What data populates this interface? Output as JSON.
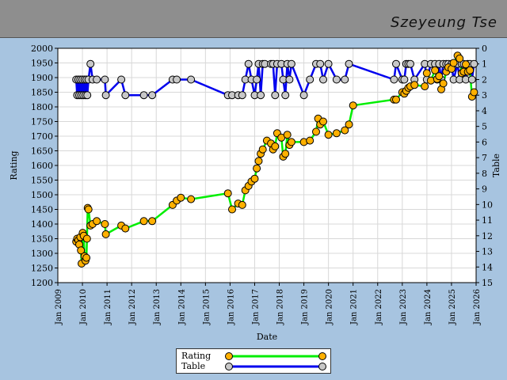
{
  "header": {
    "player_name": "Szeyeung Tse"
  },
  "chart_data": {
    "type": "line",
    "x_axis": {
      "label": "Date",
      "ticks": [
        "Jan 2009",
        "Jan 2010",
        "Jan 2011",
        "Jan 2012",
        "Jan 2013",
        "Jan 2014",
        "Jan 2015",
        "Jan 2016",
        "Jan 2017",
        "Jan 2018",
        "Jan 2019",
        "Jan 2020",
        "Jan 2021",
        "Jan 2022",
        "Jan 2023",
        "Jan 2024",
        "Jan 2025",
        "Jan 2026"
      ],
      "range": [
        "2009-01-01",
        "2026-01-01"
      ]
    },
    "y_left": {
      "label": "Rating",
      "range": [
        1200,
        2000
      ],
      "ticks": [
        "1200",
        "1250",
        "1300",
        "1350",
        "1400",
        "1450",
        "1500",
        "1550",
        "1600",
        "1650",
        "1700",
        "1750",
        "1800",
        "1850",
        "1900",
        "1950",
        "2000"
      ]
    },
    "y_right": {
      "label": "Table",
      "range": [
        0,
        15
      ],
      "inverted": true,
      "ticks": [
        "0",
        "1",
        "2",
        "3",
        "4",
        "5",
        "6",
        "7",
        "8",
        "9",
        "10",
        "11",
        "12",
        "13",
        "14",
        "15"
      ]
    },
    "grid": true,
    "legend_placement": "bottom-center",
    "series": [
      {
        "name": "Rating",
        "color": "#00ee00",
        "marker_color": "#ffb000",
        "axis": "left",
        "points": [
          [
            "2009-10-01",
            1340
          ],
          [
            "2009-10-15",
            1350
          ],
          [
            "2009-11-01",
            1345
          ],
          [
            "2009-11-15",
            1330
          ],
          [
            "2009-12-01",
            1355
          ],
          [
            "2009-12-10",
            1310
          ],
          [
            "2009-12-20",
            1265
          ],
          [
            "2010-01-05",
            1370
          ],
          [
            "2010-01-20",
            1360
          ],
          [
            "2010-02-01",
            1290
          ],
          [
            "2010-02-15",
            1275
          ],
          [
            "2010-03-01",
            1285
          ],
          [
            "2010-03-10",
            1350
          ],
          [
            "2010-03-20",
            1455
          ],
          [
            "2010-04-01",
            1450
          ],
          [
            "2010-05-01",
            1395
          ],
          [
            "2010-06-01",
            1400
          ],
          [
            "2010-08-01",
            1410
          ],
          [
            "2010-12-01",
            1400
          ],
          [
            "2010-12-15",
            1365
          ],
          [
            "2011-08-01",
            1395
          ],
          [
            "2011-10-01",
            1385
          ],
          [
            "2012-07-01",
            1410
          ],
          [
            "2012-11-01",
            1410
          ],
          [
            "2013-09-01",
            1465
          ],
          [
            "2013-11-01",
            1480
          ],
          [
            "2014-01-01",
            1490
          ],
          [
            "2014-06-01",
            1485
          ],
          [
            "2015-12-01",
            1505
          ],
          [
            "2016-02-01",
            1450
          ],
          [
            "2016-05-01",
            1470
          ],
          [
            "2016-07-01",
            1465
          ],
          [
            "2016-08-15",
            1515
          ],
          [
            "2016-10-01",
            1530
          ],
          [
            "2016-11-15",
            1545
          ],
          [
            "2017-01-01",
            1555
          ],
          [
            "2017-02-01",
            1590
          ],
          [
            "2017-03-01",
            1615
          ],
          [
            "2017-04-01",
            1640
          ],
          [
            "2017-05-01",
            1655
          ],
          [
            "2017-07-01",
            1685
          ],
          [
            "2017-09-01",
            1675
          ],
          [
            "2017-10-01",
            1655
          ],
          [
            "2017-11-01",
            1665
          ],
          [
            "2017-12-01",
            1710
          ],
          [
            "2018-02-01",
            1695
          ],
          [
            "2018-03-01",
            1630
          ],
          [
            "2018-04-01",
            1640
          ],
          [
            "2018-05-01",
            1705
          ],
          [
            "2018-06-01",
            1670
          ],
          [
            "2018-07-01",
            1680
          ],
          [
            "2019-01-01",
            1680
          ],
          [
            "2019-04-01",
            1685
          ],
          [
            "2019-07-01",
            1715
          ],
          [
            "2019-08-01",
            1760
          ],
          [
            "2019-09-01",
            1740
          ],
          [
            "2019-10-15",
            1750
          ],
          [
            "2020-01-01",
            1705
          ],
          [
            "2020-05-01",
            1710
          ],
          [
            "2020-09-01",
            1720
          ],
          [
            "2020-11-01",
            1740
          ],
          [
            "2021-01-01",
            1805
          ],
          [
            "2022-09-01",
            1825
          ],
          [
            "2022-10-01",
            1825
          ],
          [
            "2023-01-01",
            1850
          ],
          [
            "2023-02-01",
            1845
          ],
          [
            "2023-03-01",
            1855
          ],
          [
            "2023-04-01",
            1865
          ],
          [
            "2023-05-01",
            1870
          ],
          [
            "2023-07-01",
            1875
          ],
          [
            "2023-12-01",
            1870
          ],
          [
            "2024-01-01",
            1915
          ],
          [
            "2024-03-01",
            1890
          ],
          [
            "2024-05-01",
            1925
          ],
          [
            "2024-06-01",
            1895
          ],
          [
            "2024-07-01",
            1905
          ],
          [
            "2024-08-01",
            1860
          ],
          [
            "2024-09-01",
            1880
          ],
          [
            "2024-10-15",
            1920
          ],
          [
            "2024-11-15",
            1935
          ],
          [
            "2025-01-01",
            1930
          ],
          [
            "2025-02-01",
            1950
          ],
          [
            "2025-04-01",
            1975
          ],
          [
            "2025-05-01",
            1965
          ],
          [
            "2025-06-01",
            1915
          ],
          [
            "2025-07-01",
            1920
          ],
          [
            "2025-08-01",
            1945
          ],
          [
            "2025-09-01",
            1920
          ],
          [
            "2025-10-01",
            1925
          ],
          [
            "2025-11-01",
            1835
          ],
          [
            "2025-12-01",
            1850
          ]
        ]
      },
      {
        "name": "Table",
        "color": "#0000ee",
        "marker_color": "#c8c8c8",
        "axis": "right",
        "points": [
          [
            "2009-10-01",
            2
          ],
          [
            "2009-10-15",
            3
          ],
          [
            "2009-11-01",
            2
          ],
          [
            "2009-11-15",
            3
          ],
          [
            "2009-12-01",
            2
          ],
          [
            "2009-12-15",
            3
          ],
          [
            "2010-01-01",
            2
          ],
          [
            "2010-01-15",
            3
          ],
          [
            "2010-02-01",
            2
          ],
          [
            "2010-02-15",
            3
          ],
          [
            "2010-03-01",
            2
          ],
          [
            "2010-03-15",
            3
          ],
          [
            "2010-04-01",
            2
          ],
          [
            "2010-05-01",
            1
          ],
          [
            "2010-06-01",
            2
          ],
          [
            "2010-08-01",
            2
          ],
          [
            "2010-12-01",
            2
          ],
          [
            "2010-12-15",
            3
          ],
          [
            "2011-08-01",
            2
          ],
          [
            "2011-10-01",
            3
          ],
          [
            "2012-07-01",
            3
          ],
          [
            "2012-11-01",
            3
          ],
          [
            "2013-09-01",
            2
          ],
          [
            "2013-11-01",
            2
          ],
          [
            "2014-06-01",
            2
          ],
          [
            "2015-12-01",
            3
          ],
          [
            "2016-02-01",
            3
          ],
          [
            "2016-05-01",
            3
          ],
          [
            "2016-07-01",
            3
          ],
          [
            "2016-08-15",
            2
          ],
          [
            "2016-10-01",
            1
          ],
          [
            "2016-11-15",
            2
          ],
          [
            "2017-01-01",
            3
          ],
          [
            "2017-02-01",
            2
          ],
          [
            "2017-03-01",
            1
          ],
          [
            "2017-04-01",
            3
          ],
          [
            "2017-05-01",
            1
          ],
          [
            "2017-06-01",
            1
          ],
          [
            "2017-09-01",
            1
          ],
          [
            "2017-10-01",
            1
          ],
          [
            "2017-11-01",
            3
          ],
          [
            "2017-12-01",
            1
          ],
          [
            "2018-02-01",
            1
          ],
          [
            "2018-03-01",
            2
          ],
          [
            "2018-04-01",
            3
          ],
          [
            "2018-05-01",
            1
          ],
          [
            "2018-06-01",
            2
          ],
          [
            "2018-07-01",
            1
          ],
          [
            "2019-01-01",
            3
          ],
          [
            "2019-04-01",
            2
          ],
          [
            "2019-07-01",
            1
          ],
          [
            "2019-09-01",
            1
          ],
          [
            "2019-10-15",
            2
          ],
          [
            "2020-01-01",
            1
          ],
          [
            "2020-05-01",
            2
          ],
          [
            "2020-09-01",
            2
          ],
          [
            "2020-11-01",
            1
          ],
          [
            "2022-09-01",
            2
          ],
          [
            "2022-10-01",
            1
          ],
          [
            "2023-01-01",
            2
          ],
          [
            "2023-02-01",
            2
          ],
          [
            "2023-03-01",
            1
          ],
          [
            "2023-04-01",
            1
          ],
          [
            "2023-05-01",
            1
          ],
          [
            "2023-07-01",
            2
          ],
          [
            "2023-12-01",
            1
          ],
          [
            "2024-01-01",
            2
          ],
          [
            "2024-03-01",
            1
          ],
          [
            "2024-05-01",
            1
          ],
          [
            "2024-06-01",
            2
          ],
          [
            "2024-07-01",
            1
          ],
          [
            "2024-08-01",
            2
          ],
          [
            "2024-09-01",
            1
          ],
          [
            "2024-10-15",
            1
          ],
          [
            "2024-11-15",
            1
          ],
          [
            "2025-01-01",
            1
          ],
          [
            "2025-02-01",
            2
          ],
          [
            "2025-04-01",
            1
          ],
          [
            "2025-05-01",
            2
          ],
          [
            "2025-06-01",
            1
          ],
          [
            "2025-07-01",
            1
          ],
          [
            "2025-08-01",
            2
          ],
          [
            "2025-09-01",
            1
          ],
          [
            "2025-10-01",
            1
          ],
          [
            "2025-11-01",
            2
          ],
          [
            "2025-12-01",
            1
          ]
        ]
      }
    ]
  }
}
